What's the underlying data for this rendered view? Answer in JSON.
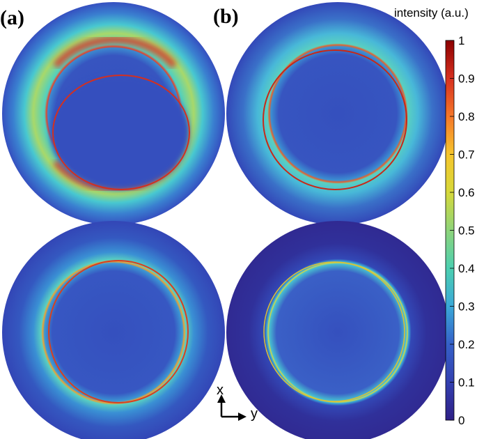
{
  "panels": [
    {
      "label": "(a)"
    },
    {
      "label": "(b)"
    }
  ],
  "colorbar": {
    "title": "intensity (a.u.)",
    "lim": [
      0,
      1
    ],
    "ticks": [
      0,
      0.1,
      0.2,
      0.3,
      0.4,
      0.5,
      0.6,
      0.7,
      0.8,
      0.9,
      1
    ]
  },
  "axes": {
    "x": "x",
    "y": "y"
  }
}
